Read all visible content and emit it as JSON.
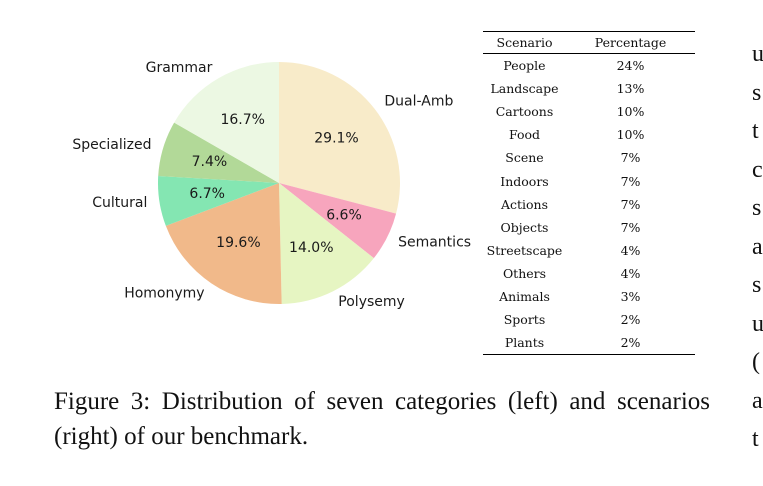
{
  "chart_data": {
    "type": "pie",
    "title": "",
    "start": "12 o'clock, clockwise",
    "slices": [
      {
        "label": "Dual-Amb",
        "value": 29.1,
        "pct_label": "29.1%",
        "color": "#f8ebc9"
      },
      {
        "label": "Semantics",
        "value": 6.6,
        "pct_label": "6.6%",
        "color": "#f7a5bd"
      },
      {
        "label": "Polysemy",
        "value": 14.0,
        "pct_label": "14.0%",
        "color": "#e6f5c2"
      },
      {
        "label": "Homonymy",
        "value": 19.6,
        "pct_label": "19.6%",
        "color": "#f1b98a"
      },
      {
        "label": "Cultural",
        "value": 6.7,
        "pct_label": "6.7%",
        "color": "#84e6b2"
      },
      {
        "label": "Specialized",
        "value": 7.4,
        "pct_label": "7.4%",
        "color": "#b2d998"
      },
      {
        "label": "Grammar",
        "value": 16.7,
        "pct_label": "16.7%",
        "color": "#ecf8e3"
      }
    ]
  },
  "table": {
    "headers": [
      "Scenario",
      "Percentage"
    ],
    "rows": [
      [
        "People",
        "24%"
      ],
      [
        "Landscape",
        "13%"
      ],
      [
        "Cartoons",
        "10%"
      ],
      [
        "Food",
        "10%"
      ],
      [
        "Scene",
        "7%"
      ],
      [
        "Indoors",
        "7%"
      ],
      [
        "Actions",
        "7%"
      ],
      [
        "Objects",
        "7%"
      ],
      [
        "Streetscape",
        "4%"
      ],
      [
        "Others",
        "4%"
      ],
      [
        "Animals",
        "3%"
      ],
      [
        "Sports",
        "2%"
      ],
      [
        "Plants",
        "2%"
      ]
    ]
  },
  "caption": {
    "text": "Figure 3:  Distribution of seven categories (left) and scenarios (right) of our benchmark."
  },
  "right_margin": {
    "glyphs": [
      "u",
      "s",
      "t",
      "c",
      "s",
      "a",
      "s",
      "u",
      "(",
      "a",
      "t"
    ]
  }
}
